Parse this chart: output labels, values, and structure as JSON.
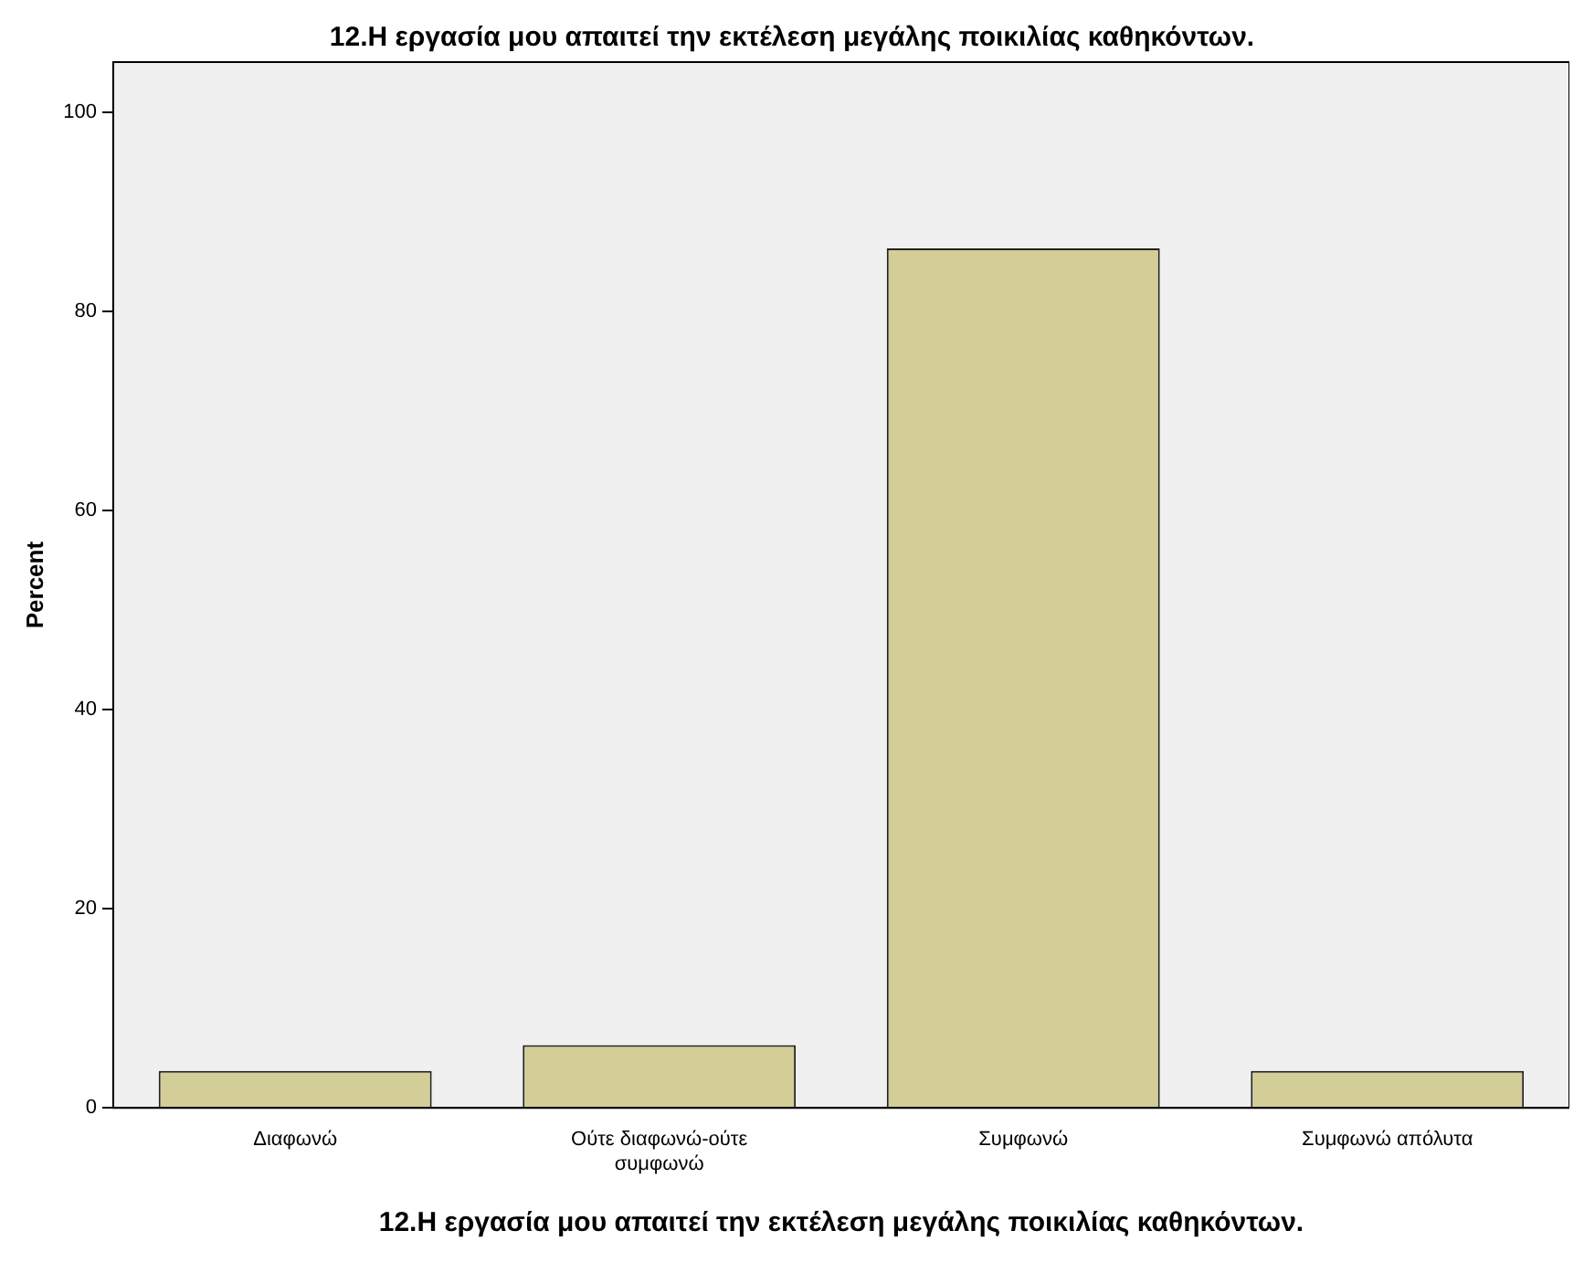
{
  "chart_data": {
    "type": "bar",
    "title": "12.Η εργασία μου απαιτεί την εκτέλεση μεγάλης ποικιλίας καθηκόντων.",
    "xlabel": "12.Η εργασία μου απαιτεί την εκτέλεση μεγάλης ποικιλίας καθηκόντων.",
    "ylabel": "Percent",
    "categories": [
      "Διαφωνώ",
      "Ούτε διαφωνώ-ούτε συμφωνώ",
      "Συμφωνώ",
      "Συμφωνώ απόλυτα"
    ],
    "values": [
      3.7,
      6.3,
      86.3,
      3.7
    ],
    "color": "#d3ce97",
    "ylim": [
      0,
      105
    ],
    "yticks": [
      0,
      20,
      40,
      60,
      80,
      100
    ],
    "grid": false,
    "legend": false
  }
}
